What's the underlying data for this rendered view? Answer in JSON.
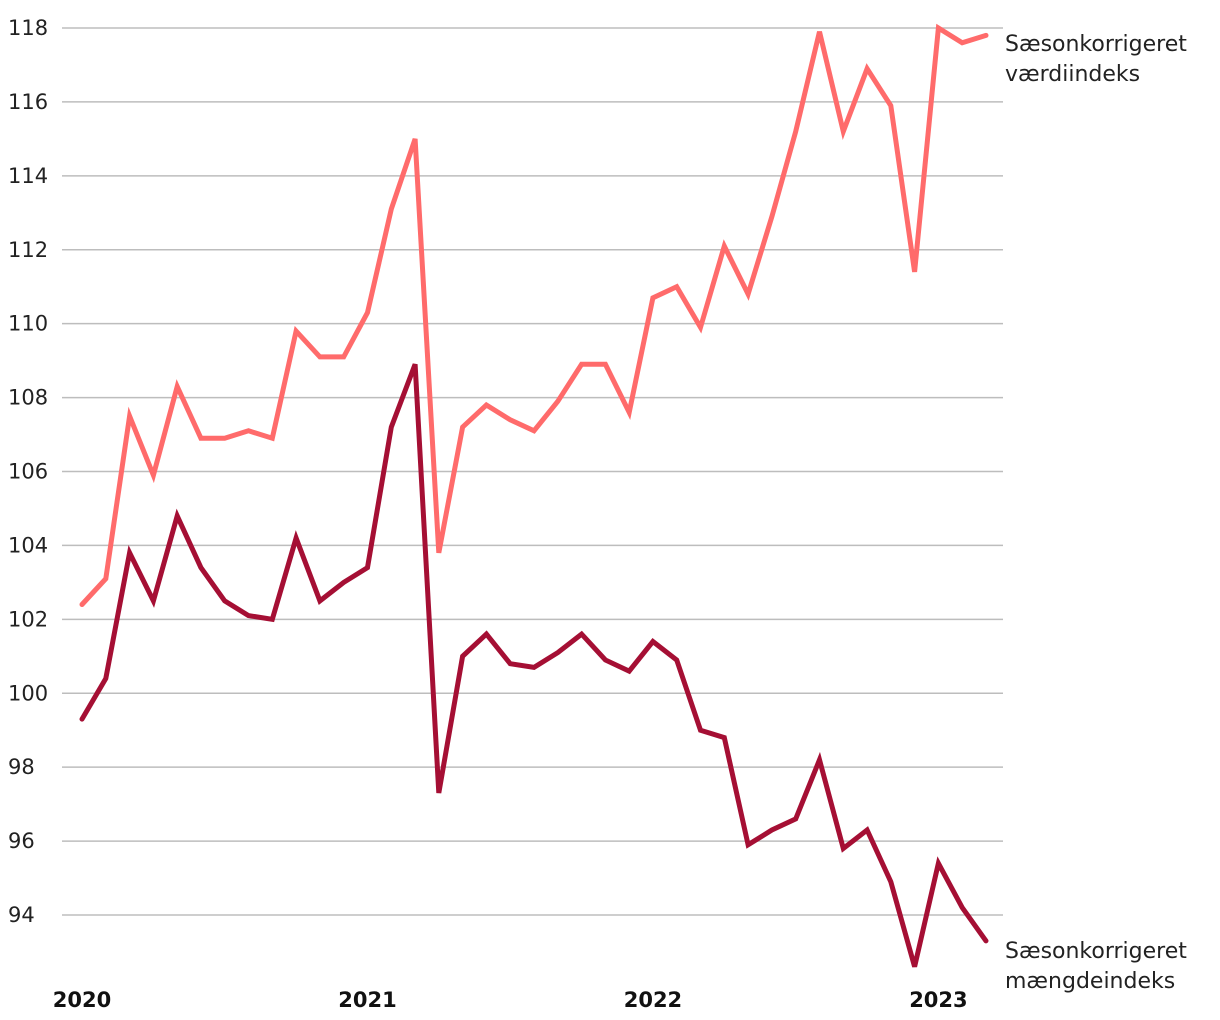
{
  "chart_data": {
    "type": "line",
    "title": "",
    "xlabel": "",
    "ylabel": "",
    "ylim": [
      92.5,
      118
    ],
    "yticks": [
      94,
      96,
      98,
      100,
      102,
      104,
      106,
      108,
      110,
      112,
      114,
      116,
      118
    ],
    "xtick_labels": [
      {
        "label": "2020",
        "index": 0
      },
      {
        "label": "2021",
        "index": 12
      },
      {
        "label": "2022",
        "index": 24
      },
      {
        "label": "2023",
        "index": 36
      }
    ],
    "grid": true,
    "x_count": 39,
    "series": [
      {
        "name": "Sæsonkorrigeret værdiindeks",
        "label_lines": [
          "Sæsonkorrigeret",
          "værdiindeks"
        ],
        "color": "#ff6b6b",
        "values": [
          102.4,
          103.1,
          107.5,
          105.9,
          108.3,
          106.9,
          106.9,
          107.1,
          106.9,
          109.8,
          109.1,
          109.1,
          110.3,
          113.1,
          115.0,
          103.8,
          107.2,
          107.8,
          107.4,
          107.1,
          107.9,
          108.9,
          108.9,
          107.6,
          110.7,
          111.0,
          109.9,
          112.1,
          110.8,
          112.9,
          115.2,
          117.9,
          115.2,
          116.9,
          115.9,
          111.4,
          118.0,
          117.6,
          117.8
        ]
      },
      {
        "name": "Sæsonkorrigeret mængdeindeks",
        "label_lines": [
          "Sæsonkorrigeret",
          "mængdeindeks"
        ],
        "color": "#a50f34",
        "values": [
          99.3,
          100.4,
          103.8,
          102.5,
          104.8,
          103.4,
          102.5,
          102.1,
          102.0,
          104.2,
          102.5,
          103.0,
          103.4,
          107.2,
          108.9,
          97.3,
          101.0,
          101.6,
          100.8,
          100.7,
          101.1,
          101.6,
          100.9,
          100.6,
          101.4,
          100.9,
          99.0,
          98.8,
          95.9,
          96.3,
          96.6,
          98.2,
          95.8,
          96.3,
          94.9,
          92.6,
          95.4,
          94.2,
          93.3
        ]
      }
    ]
  }
}
